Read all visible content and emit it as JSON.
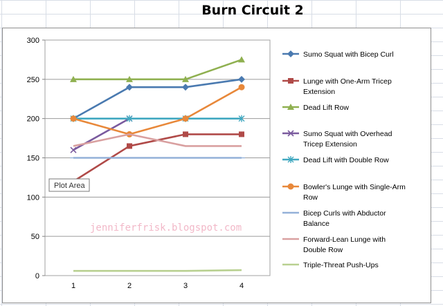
{
  "chart_data": {
    "type": "line",
    "title": "Burn Circuit 2",
    "categories": [
      "1",
      "2",
      "3",
      "4"
    ],
    "ylim": [
      0,
      300
    ],
    "yticks": [
      0,
      50,
      100,
      150,
      200,
      250,
      300
    ],
    "grid": "horizontal",
    "legend_position": "right",
    "series": [
      {
        "name": "Sumo Squat with Bicep Curl",
        "label_lines": [
          "Sumo Squat with Bicep Curl"
        ],
        "values": [
          200,
          240,
          240,
          250
        ],
        "color": "#4a7ab0",
        "marker": "diamond"
      },
      {
        "name": "Lunge with One-Arm Tricep Extension",
        "label_lines": [
          "Lunge with One-Arm Tricep",
          "Extension"
        ],
        "values": [
          120,
          165,
          180,
          180
        ],
        "color": "#b04a48",
        "marker": "square"
      },
      {
        "name": "Dead Lift Row",
        "label_lines": [
          "Dead Lift Row"
        ],
        "values": [
          250,
          250,
          250,
          275
        ],
        "color": "#8fb050",
        "marker": "triangle"
      },
      {
        "name": "Sumo Squat with Overhead Tricep Extension",
        "label_lines": [
          "Sumo Squat with Overhead",
          "Tricep Extension"
        ],
        "values": [
          160,
          200,
          null,
          null
        ],
        "color": "#7a5a9e",
        "marker": "x"
      },
      {
        "name": "Dead Lift with Double Row",
        "label_lines": [
          "Dead Lift with Double Row"
        ],
        "values": [
          200,
          200,
          200,
          200
        ],
        "color": "#40a8c0",
        "marker": "star"
      },
      {
        "name": "Bowler's Lunge with Single-Arm Row",
        "label_lines": [
          "Bowler's Lunge with Single-Arm",
          "Row"
        ],
        "values": [
          200,
          180,
          200,
          240
        ],
        "color": "#e8883a",
        "marker": "circle"
      },
      {
        "name": "Bicep Curls with Abductor Balance",
        "label_lines": [
          "Bicep Curls with Abductor",
          "Balance"
        ],
        "values": [
          150,
          150,
          150,
          150
        ],
        "color": "#93b0d8",
        "marker": "plus"
      },
      {
        "name": "Forward-Lean Lunge with Double Row",
        "label_lines": [
          "Forward-Lean Lunge with",
          "Double Row"
        ],
        "values": [
          165,
          180,
          165,
          165
        ],
        "color": "#d9a0a0",
        "marker": "none"
      },
      {
        "name": "Triple-Threat Push-Ups",
        "label_lines": [
          "Triple-Threat Push-Ups"
        ],
        "values": [
          6,
          6,
          6,
          7
        ],
        "color": "#b8d090",
        "marker": "none"
      }
    ]
  },
  "tooltip": {
    "text": "Plot Area"
  },
  "watermark": {
    "text": "jenniferfrisk.blogspot.com"
  }
}
